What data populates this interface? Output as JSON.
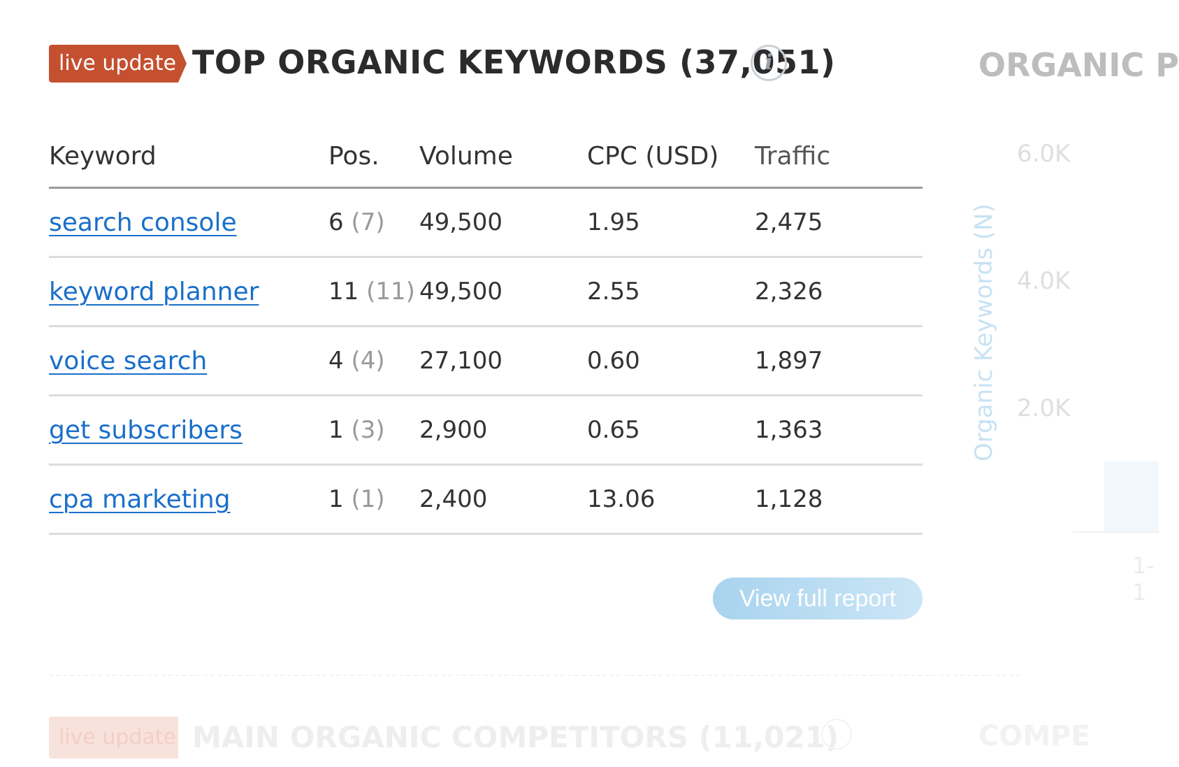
{
  "header": {
    "badge": "live update",
    "title": "TOP ORGANIC KEYWORDS (37,051)",
    "side_title": "ORGANIC P"
  },
  "table": {
    "columns": [
      "Keyword",
      "Pos.",
      "Volume",
      "CPC (USD)",
      "Traffic"
    ],
    "rows": [
      {
        "keyword": "search console",
        "pos": "6",
        "prev": "(7)",
        "volume": "49,500",
        "cpc": "1.95",
        "traffic": "2,475"
      },
      {
        "keyword": "keyword planner",
        "pos": "11",
        "prev": "(11)",
        "volume": "49,500",
        "cpc": "2.55",
        "traffic": "2,326"
      },
      {
        "keyword": "voice search",
        "pos": "4",
        "prev": "(4)",
        "volume": "27,100",
        "cpc": "0.60",
        "traffic": "1,897"
      },
      {
        "keyword": "get subscribers",
        "pos": "1",
        "prev": "(3)",
        "volume": "2,900",
        "cpc": "0.65",
        "traffic": "1,363"
      },
      {
        "keyword": "cpa marketing",
        "pos": "1",
        "prev": "(1)",
        "volume": "2,400",
        "cpc": "13.06",
        "traffic": "1,128"
      }
    ]
  },
  "actions": {
    "view_full_report": "View full report"
  },
  "side_chart": {
    "ylabel": "Organic Keywords (N)",
    "ticks": [
      "6.0K",
      "4.0K",
      "2.0K"
    ],
    "xtick": "1-1"
  },
  "next_section": {
    "badge": "live update",
    "title": "MAIN ORGANIC COMPETITORS (11,021)",
    "side_title": "COMPE"
  },
  "colors": {
    "badge": "#c4502f",
    "link": "#1a6fc9",
    "button": "#a9d3ee"
  }
}
